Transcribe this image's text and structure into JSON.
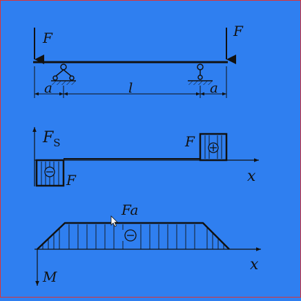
{
  "colors": {
    "background": "#2f7ff0",
    "ink": "#111111",
    "border": "#dd3333"
  },
  "beam": {
    "force_left_label": "F",
    "force_right_label": "F",
    "dim_left_label": "a",
    "dim_middle_label": "l",
    "dim_right_label": "a"
  },
  "shear_diagram": {
    "axis_label": "F",
    "axis_label_sub": "S",
    "x_label": "x",
    "negative_label": "F",
    "positive_label": "F",
    "negative_sign": "⊖",
    "positive_sign": "⊕"
  },
  "moment_diagram": {
    "axis_label": "M",
    "x_label": "x",
    "value_label": "Fa",
    "sign": "⊖"
  }
}
